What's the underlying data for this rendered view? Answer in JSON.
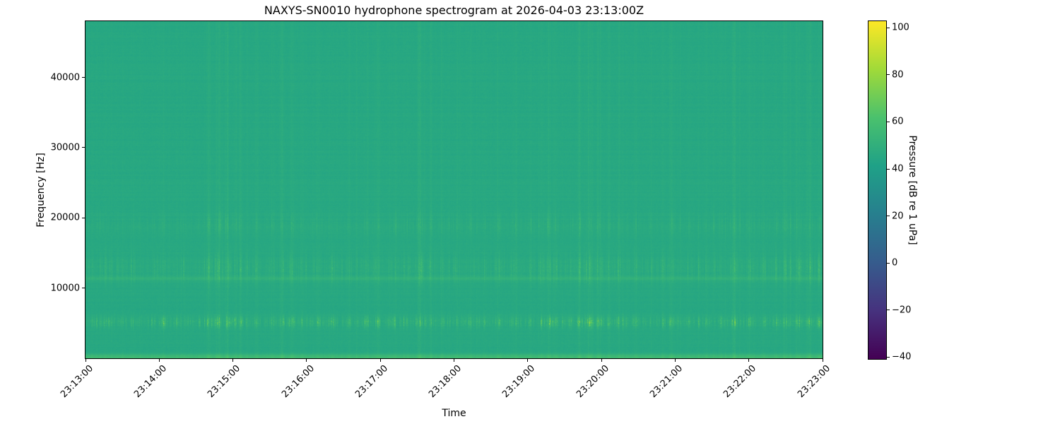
{
  "chart_data": {
    "type": "heatmap",
    "subtype": "spectrogram",
    "title": "NAXYS-SN0010 hydrophone spectrogram at 2026-04-03 23:13:00Z",
    "xlabel": "Time",
    "ylabel": "Frequency [Hz]",
    "x_range_seconds": [
      0,
      600
    ],
    "x_ticks": [
      {
        "t": 0,
        "label": "23:13:00"
      },
      {
        "t": 60,
        "label": "23:14:00"
      },
      {
        "t": 120,
        "label": "23:15:00"
      },
      {
        "t": 180,
        "label": "23:16:00"
      },
      {
        "t": 240,
        "label": "23:17:00"
      },
      {
        "t": 300,
        "label": "23:18:00"
      },
      {
        "t": 360,
        "label": "23:19:00"
      },
      {
        "t": 420,
        "label": "23:20:00"
      },
      {
        "t": 480,
        "label": "23:21:00"
      },
      {
        "t": 540,
        "label": "23:22:00"
      },
      {
        "t": 600,
        "label": "23:23:00"
      }
    ],
    "y_range_hz": [
      0,
      48000
    ],
    "y_ticks": [
      {
        "f": 10000,
        "label": "10000"
      },
      {
        "f": 20000,
        "label": "20000"
      },
      {
        "f": 30000,
        "label": "30000"
      },
      {
        "f": 40000,
        "label": "40000"
      }
    ],
    "grid": false,
    "colorbar": {
      "label": "Pressure [dB re 1 uPa]",
      "range_db": [
        -40.8,
        102.8
      ],
      "ticks": [
        {
          "v": 100,
          "label": "100"
        },
        {
          "v": 80,
          "label": "80"
        },
        {
          "v": 60,
          "label": "60"
        },
        {
          "v": 40,
          "label": "40"
        },
        {
          "v": 20,
          "label": "20"
        },
        {
          "v": 0,
          "label": "0"
        },
        {
          "v": -20,
          "label": "−20"
        },
        {
          "v": -40,
          "label": "−40"
        }
      ],
      "colormap": "viridis",
      "colormap_stops": [
        "#440154",
        "#46327e",
        "#365c8d",
        "#277f8e",
        "#1fa187",
        "#4ac16d",
        "#a0da39",
        "#fde725"
      ]
    },
    "background_level_db": 45.4,
    "noise_db": 2.2,
    "row_streak_db": 1.6,
    "render_seed": 1234,
    "micro_event_count": 300,
    "features": [
      {
        "name": "snapping-band-5khz",
        "center_hz": 5150,
        "sigma_hz": 520,
        "event_gain_db": 44,
        "ambient_gain_db": 8,
        "speckle": true,
        "col_exp": 1.1
      },
      {
        "name": "mid-band-12-14khz",
        "center_hz": 12800,
        "sigma_hz": 1350,
        "event_gain_db": 20,
        "ambient_gain_db": 4.5,
        "speckle": true,
        "col_exp": 1.3
      },
      {
        "name": "band-19khz",
        "center_hz": 19100,
        "sigma_hz": 1050,
        "event_gain_db": 13,
        "ambient_gain_db": 2,
        "speckle": true,
        "col_exp": 1.3
      },
      {
        "name": "broadband-transients",
        "center_hz": 24000,
        "sigma_hz": 60000,
        "event_gain_db": 6.5,
        "ambient_gain_db": 0,
        "speckle": true,
        "col_exp": 1.0
      },
      {
        "name": "tonal-line-11p4khz",
        "center_hz": 11400,
        "sigma_hz": 210,
        "event_gain_db": 0,
        "ambient_gain_db": 4.5,
        "speckle": false
      },
      {
        "name": "low-freq-bright-edge",
        "center_hz": 120,
        "sigma_hz": 330,
        "event_gain_db": 4,
        "ambient_gain_db": 11,
        "speckle": false
      }
    ],
    "event_clusters": [
      {
        "t": 16,
        "w": 2,
        "s": 0.35
      },
      {
        "t": 30,
        "w": 1.5,
        "s": 0.25
      },
      {
        "t": 63,
        "w": 3,
        "s": 0.55
      },
      {
        "t": 80,
        "w": 2,
        "s": 0.3
      },
      {
        "t": 100,
        "w": 3,
        "s": 0.75
      },
      {
        "t": 108,
        "w": 4,
        "s": 0.9
      },
      {
        "t": 115,
        "w": 3,
        "s": 0.85
      },
      {
        "t": 122,
        "w": 2,
        "s": 0.5
      },
      {
        "t": 126,
        "w": 2,
        "s": 0.6
      },
      {
        "t": 139,
        "w": 2.5,
        "s": 0.5
      },
      {
        "t": 152,
        "w": 2,
        "s": 0.4
      },
      {
        "t": 160,
        "w": 3,
        "s": 0.85
      },
      {
        "t": 168,
        "w": 3,
        "s": 0.8
      },
      {
        "t": 176,
        "w": 2,
        "s": 0.45
      },
      {
        "t": 189,
        "w": 2.5,
        "s": 0.5
      },
      {
        "t": 201,
        "w": 2,
        "s": 0.45
      },
      {
        "t": 214,
        "w": 2,
        "s": 0.35
      },
      {
        "t": 228,
        "w": 2,
        "s": 0.4
      },
      {
        "t": 238,
        "w": 3,
        "s": 0.55
      },
      {
        "t": 252,
        "w": 2.5,
        "s": 0.5
      },
      {
        "t": 262,
        "w": 2,
        "s": 0.4
      },
      {
        "t": 272,
        "w": 3,
        "s": 0.95
      },
      {
        "t": 281,
        "w": 2,
        "s": 0.5
      },
      {
        "t": 290,
        "w": 2.5,
        "s": 0.55
      },
      {
        "t": 302,
        "w": 2,
        "s": 0.35
      },
      {
        "t": 313,
        "w": 2.5,
        "s": 0.45
      },
      {
        "t": 325,
        "w": 2,
        "s": 0.35
      },
      {
        "t": 336,
        "w": 3,
        "s": 0.6
      },
      {
        "t": 350,
        "w": 2.5,
        "s": 0.45
      },
      {
        "t": 362,
        "w": 2,
        "s": 0.4
      },
      {
        "t": 371,
        "w": 2,
        "s": 0.5
      },
      {
        "t": 377,
        "w": 3,
        "s": 0.75
      },
      {
        "t": 383,
        "w": 2.5,
        "s": 0.6
      },
      {
        "t": 395,
        "w": 2,
        "s": 0.45
      },
      {
        "t": 402,
        "w": 3,
        "s": 0.8
      },
      {
        "t": 410,
        "w": 4,
        "s": 0.95
      },
      {
        "t": 418,
        "w": 3,
        "s": 0.85
      },
      {
        "t": 426,
        "w": 2,
        "s": 0.5
      },
      {
        "t": 434,
        "w": 2.5,
        "s": 0.5
      },
      {
        "t": 448,
        "w": 2.5,
        "s": 0.55
      },
      {
        "t": 460,
        "w": 2,
        "s": 0.4
      },
      {
        "t": 470,
        "w": 2,
        "s": 0.5
      },
      {
        "t": 477,
        "w": 3,
        "s": 0.7
      },
      {
        "t": 491,
        "w": 2,
        "s": 0.45
      },
      {
        "t": 505,
        "w": 2,
        "s": 0.35
      },
      {
        "t": 517,
        "w": 2,
        "s": 0.4
      },
      {
        "t": 528,
        "w": 3,
        "s": 0.75
      },
      {
        "t": 540,
        "w": 2.5,
        "s": 0.5
      },
      {
        "t": 552,
        "w": 2,
        "s": 0.45
      },
      {
        "t": 562,
        "w": 2,
        "s": 0.5
      },
      {
        "t": 569,
        "w": 2.5,
        "s": 0.6
      },
      {
        "t": 580,
        "w": 3,
        "s": 0.8
      },
      {
        "t": 589,
        "w": 3,
        "s": 0.9
      },
      {
        "t": 597,
        "w": 2.5,
        "s": 0.85
      }
    ]
  }
}
